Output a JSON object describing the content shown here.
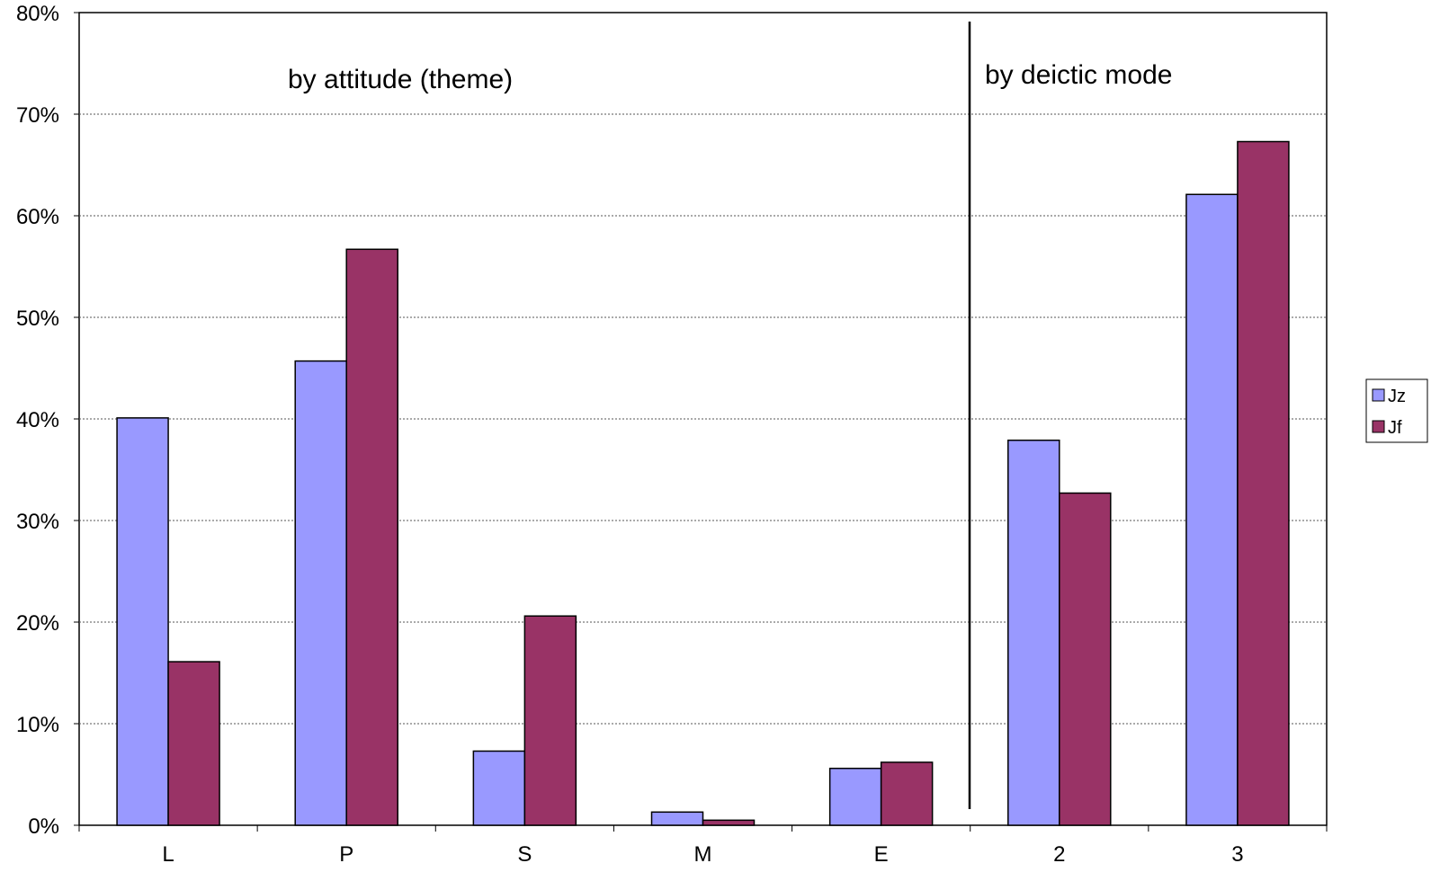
{
  "chart_data": {
    "type": "bar",
    "categories": [
      "L",
      "P",
      "S",
      "M",
      "E",
      "2",
      "3"
    ],
    "series": [
      {
        "name": "Jz",
        "color": "#9999ff",
        "values": [
          40.1,
          45.7,
          7.3,
          1.3,
          5.6,
          37.9,
          62.1
        ]
      },
      {
        "name": "Jf",
        "color": "#993366",
        "values": [
          16.1,
          56.7,
          20.6,
          0.5,
          6.2,
          32.7,
          67.3
        ]
      }
    ],
    "ylim": [
      0,
      80
    ],
    "yticks": [
      0,
      10,
      20,
      30,
      40,
      50,
      60,
      70,
      80
    ],
    "ytick_labels": [
      "0%",
      "10%",
      "20%",
      "30%",
      "40%",
      "50%",
      "60%",
      "70%",
      "80%"
    ],
    "grid": true,
    "legend": "right",
    "annotations": [
      "by attitude (theme)",
      "by deictic mode"
    ]
  }
}
